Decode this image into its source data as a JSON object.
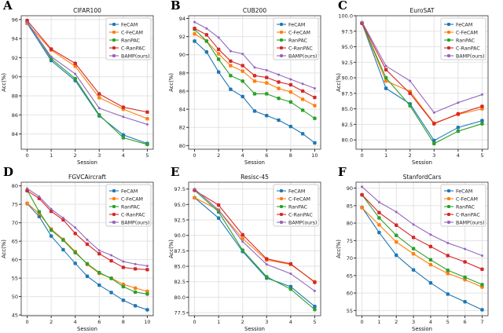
{
  "colors": {
    "FeCAM": "#1f77b4",
    "C-FeCAM": "#ff7f0e",
    "RanPAC": "#2ca02c",
    "C-RanPAC": "#d62728",
    "BAMP(ours)": "#9467bd"
  },
  "chart_data": [
    {
      "panel": "A",
      "type": "line",
      "title": "CIFAR100",
      "xlabel": "Session",
      "ylabel": "Acc(%)",
      "x": [
        0,
        1,
        2,
        3,
        4,
        5
      ],
      "xticks": [
        "0",
        "1",
        "2",
        "3",
        "4",
        "5"
      ],
      "yticks": [
        "84",
        "86",
        "88",
        "90",
        "92",
        "94",
        "96"
      ],
      "ylim": [
        82.4,
        96.4
      ],
      "grid": true,
      "legend": "top-right",
      "series": [
        {
          "name": "FeCAM",
          "values": [
            95.6,
            91.7,
            89.6,
            85.9,
            83.9,
            83.0
          ]
        },
        {
          "name": "C-FeCAM",
          "values": [
            95.6,
            92.8,
            91.1,
            87.8,
            86.6,
            85.6
          ]
        },
        {
          "name": "RanPAC",
          "values": [
            95.8,
            91.9,
            89.8,
            86.0,
            83.6,
            82.9
          ]
        },
        {
          "name": "C-RanPAC",
          "values": [
            95.9,
            92.9,
            91.4,
            88.2,
            86.8,
            86.3
          ]
        },
        {
          "name": "BAMP(ours)",
          "values": [
            95.7,
            92.1,
            90.3,
            86.7,
            85.8,
            85.0
          ]
        }
      ]
    },
    {
      "panel": "B",
      "type": "line",
      "title": "CUB200",
      "xlabel": "Session",
      "ylabel": "Acc(%)",
      "x": [
        0,
        1,
        2,
        3,
        4,
        5,
        6,
        7,
        8,
        9,
        10
      ],
      "xticks": [
        "0",
        "2",
        "4",
        "6",
        "8",
        "10"
      ],
      "yticks": [
        "80",
        "82",
        "84",
        "86",
        "88",
        "90",
        "92",
        "94"
      ],
      "ylim": [
        79.6,
        94.3
      ],
      "grid": true,
      "legend": "top-right",
      "series": [
        {
          "name": "FeCAM",
          "values": [
            91.5,
            90.3,
            88.1,
            86.2,
            85.4,
            83.8,
            83.3,
            82.8,
            82.1,
            81.3,
            80.3
          ]
        },
        {
          "name": "C-FeCAM",
          "values": [
            92.3,
            91.5,
            90.1,
            88.8,
            88.2,
            87.1,
            86.9,
            86.3,
            85.9,
            85.1,
            84.4
          ]
        },
        {
          "name": "RanPAC",
          "values": [
            92.8,
            91.5,
            89.5,
            87.7,
            87.1,
            85.7,
            85.7,
            85.2,
            84.8,
            83.9,
            83.0
          ]
        },
        {
          "name": "C-RanPAC",
          "values": [
            92.9,
            92.2,
            90.6,
            89.3,
            88.8,
            87.7,
            87.5,
            87.0,
            86.7,
            86.0,
            85.3
          ]
        },
        {
          "name": "BAMP(ours)",
          "values": [
            93.6,
            92.9,
            91.9,
            90.4,
            90.1,
            88.6,
            88.3,
            87.8,
            87.3,
            86.8,
            86.3
          ]
        }
      ]
    },
    {
      "panel": "C",
      "type": "line",
      "title": "EuroSAT",
      "xlabel": "Session",
      "ylabel": "Acc(%)",
      "x": [
        0,
        1,
        2,
        3,
        4,
        5
      ],
      "xticks": [
        "0",
        "1",
        "2",
        "3",
        "4",
        "5"
      ],
      "yticks": [
        "80.0",
        "82.5",
        "85.0",
        "87.5",
        "90.0",
        "92.5",
        "95.0",
        "97.5",
        "100.0"
      ],
      "ylim": [
        78.5,
        100.0
      ],
      "grid": true,
      "legend": "top-right",
      "series": [
        {
          "name": "FeCAM",
          "values": [
            98.8,
            88.3,
            85.8,
            79.9,
            82.0,
            83.1
          ]
        },
        {
          "name": "C-FeCAM",
          "values": [
            98.8,
            89.5,
            87.8,
            82.7,
            84.1,
            85.0
          ]
        },
        {
          "name": "RanPAC",
          "values": [
            98.8,
            90.0,
            85.5,
            79.4,
            81.4,
            82.6
          ]
        },
        {
          "name": "C-RanPAC",
          "values": [
            98.8,
            91.3,
            87.5,
            82.6,
            84.2,
            85.4
          ]
        },
        {
          "name": "BAMP(ours)",
          "values": [
            99.0,
            91.9,
            89.5,
            84.4,
            86.0,
            87.3
          ]
        }
      ]
    },
    {
      "panel": "D",
      "type": "line",
      "title": "FGVCAircraft",
      "xlabel": "Session",
      "ylabel": "Acc(%)",
      "x": [
        0,
        1,
        2,
        3,
        4,
        5,
        6,
        7,
        8,
        9,
        10
      ],
      "xticks": [
        "0",
        "2",
        "4",
        "6",
        "8",
        "10"
      ],
      "yticks": [
        "45",
        "50",
        "55",
        "60",
        "65",
        "70",
        "75",
        "80"
      ],
      "ylim": [
        44.8,
        81.0
      ],
      "grid": true,
      "legend": "top-right",
      "series": [
        {
          "name": "FeCAM",
          "values": [
            75.2,
            71.7,
            66.4,
            62.7,
            59.0,
            55.5,
            53.1,
            51.1,
            49.0,
            47.5,
            46.4
          ]
        },
        {
          "name": "C-FeCAM",
          "values": [
            75.3,
            72.5,
            68.3,
            65.5,
            62.2,
            58.7,
            56.3,
            55.0,
            53.3,
            52.3,
            51.4
          ]
        },
        {
          "name": "RanPAC",
          "values": [
            78.8,
            73.0,
            68.0,
            65.3,
            61.9,
            58.9,
            56.5,
            54.9,
            52.7,
            51.2,
            50.7
          ]
        },
        {
          "name": "C-RanPAC",
          "values": [
            78.7,
            76.6,
            73.1,
            70.8,
            67.1,
            64.2,
            61.6,
            59.7,
            57.9,
            57.5,
            57.3
          ]
        },
        {
          "name": "BAMP(ours)",
          "values": [
            79.3,
            77.1,
            73.7,
            71.3,
            68.7,
            65.4,
            62.5,
            61.2,
            59.5,
            58.8,
            58.3
          ]
        }
      ]
    },
    {
      "panel": "E",
      "type": "line",
      "title": "Resisc-45",
      "xlabel": "Session",
      "ylabel": "Acc(%)",
      "x": [
        0,
        1,
        2,
        3,
        4,
        5
      ],
      "xticks": [
        "0",
        "1",
        "2",
        "3",
        "4",
        "5"
      ],
      "yticks": [
        "77.5",
        "80.0",
        "82.5",
        "85.0",
        "87.5",
        "90.0",
        "92.5",
        "95.0",
        "97.5"
      ],
      "ylim": [
        77.0,
        98.6
      ],
      "grid": true,
      "legend": "top-right",
      "series": [
        {
          "name": "FeCAM",
          "values": [
            96.1,
            92.8,
            87.4,
            83.1,
            81.7,
            78.5
          ]
        },
        {
          "name": "C-FeCAM",
          "values": [
            96.1,
            94.1,
            89.5,
            86.0,
            85.3,
            82.5
          ]
        },
        {
          "name": "RanPAC",
          "values": [
            97.3,
            93.8,
            87.6,
            83.3,
            81.3,
            78.0
          ]
        },
        {
          "name": "C-RanPAC",
          "values": [
            97.3,
            94.9,
            90.1,
            86.2,
            85.4,
            82.4
          ]
        },
        {
          "name": "BAMP(ours)",
          "values": [
            97.5,
            94.1,
            89.0,
            85.3,
            83.8,
            81.0
          ]
        }
      ]
    },
    {
      "panel": "F",
      "type": "line",
      "title": "StanfordCars",
      "xlabel": "Session",
      "ylabel": "Acc(%)",
      "x": [
        0,
        1,
        2,
        3,
        4,
        5,
        6,
        7
      ],
      "xticks": [
        "0",
        "1",
        "2",
        "3",
        "4",
        "5",
        "6",
        "7"
      ],
      "yticks": [
        "55",
        "60",
        "65",
        "70",
        "75",
        "80",
        "85",
        "90"
      ],
      "ylim": [
        53.5,
        91.7
      ],
      "grid": true,
      "legend": "top-right",
      "series": [
        {
          "name": "FeCAM",
          "values": [
            84.5,
            77.3,
            70.8,
            66.6,
            62.9,
            59.7,
            57.5,
            55.2
          ]
        },
        {
          "name": "C-FeCAM",
          "values": [
            84.4,
            79.5,
            74.6,
            71.2,
            68.1,
            65.6,
            63.8,
            61.7
          ]
        },
        {
          "name": "RanPAC",
          "values": [
            88.1,
            81.5,
            76.5,
            72.7,
            69.5,
            66.5,
            64.5,
            62.4
          ]
        },
        {
          "name": "C-RanPAC",
          "values": [
            88.1,
            83.0,
            79.4,
            75.9,
            73.3,
            70.7,
            68.9,
            66.8
          ]
        },
        {
          "name": "BAMP(ours)",
          "values": [
            90.4,
            86.0,
            83.2,
            79.6,
            76.7,
            74.3,
            72.6,
            70.7
          ]
        }
      ]
    }
  ]
}
